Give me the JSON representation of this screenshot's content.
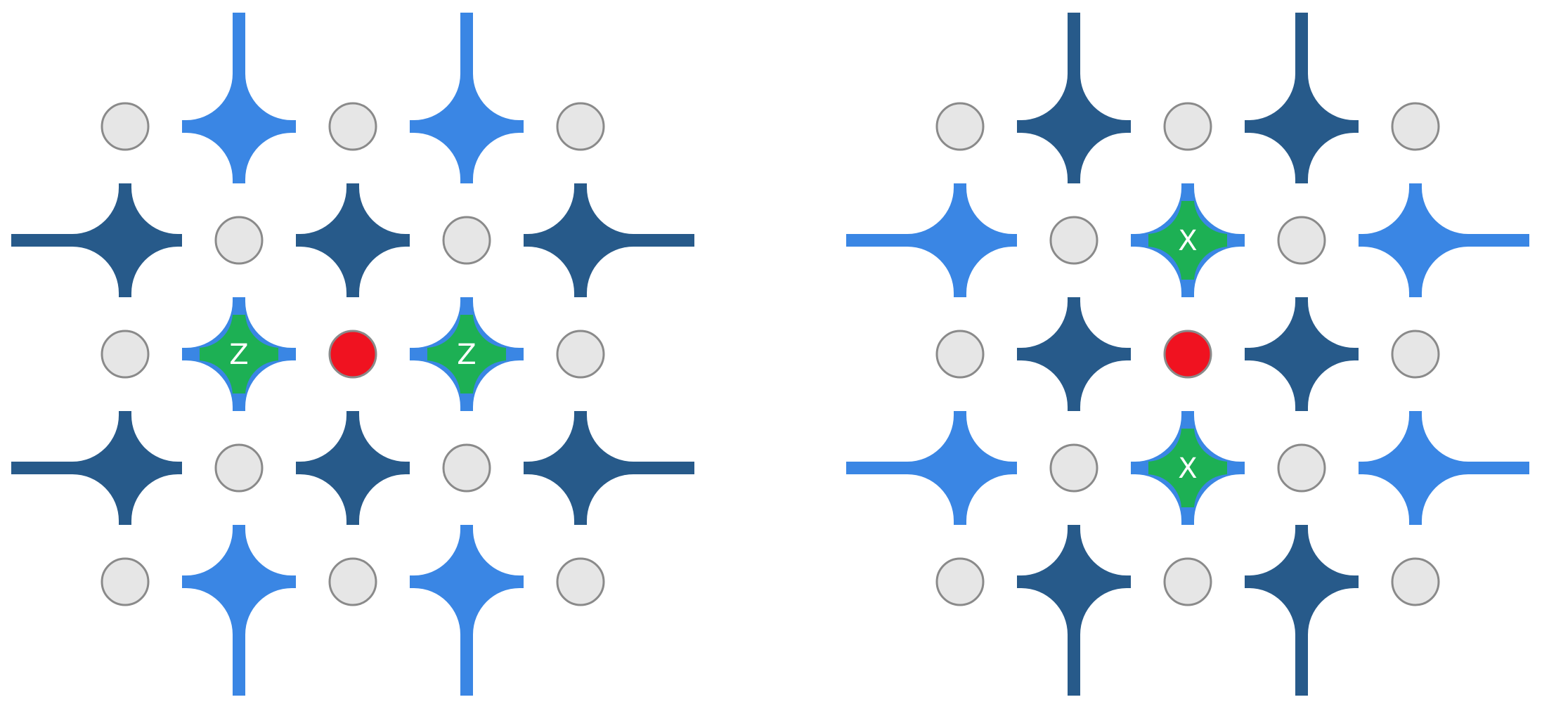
{
  "colors": {
    "z_plaquette": "#3a86e4",
    "x_plaquette": "#275a8a",
    "highlight": "#1db054",
    "qubit_fill": "#e6e6e6",
    "qubit_stroke": "#8a8a8a",
    "error_qubit": "#f01220",
    "label_text": "#ffffff"
  },
  "panels": [
    {
      "name": "z-syndrome-panel",
      "highlight_label": "Z",
      "highlight_orientation": "horizontal"
    },
    {
      "name": "x-syndrome-panel",
      "highlight_label": "X",
      "highlight_orientation": "vertical"
    }
  ]
}
